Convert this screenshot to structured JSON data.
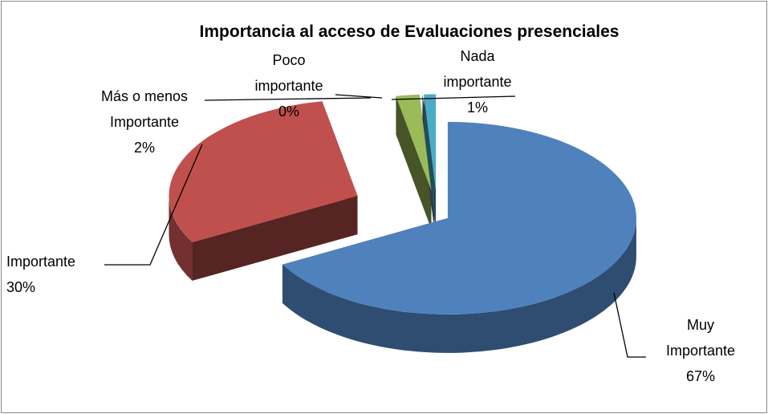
{
  "chart_data": {
    "type": "pie",
    "title": "Importancia al acceso de Evaluaciones presenciales",
    "categories": [
      "Muy Importante",
      "Importante",
      "Más o menos Importante",
      "Poco importante",
      "Nada importante"
    ],
    "values": [
      67,
      30,
      2,
      0,
      1
    ],
    "value_labels": [
      "67%",
      "30%",
      "2%",
      "0%",
      "1%"
    ],
    "colors": [
      "#4f81bd",
      "#c0504d",
      "#9bbb59",
      "#8064a2",
      "#4bacc6"
    ]
  }
}
